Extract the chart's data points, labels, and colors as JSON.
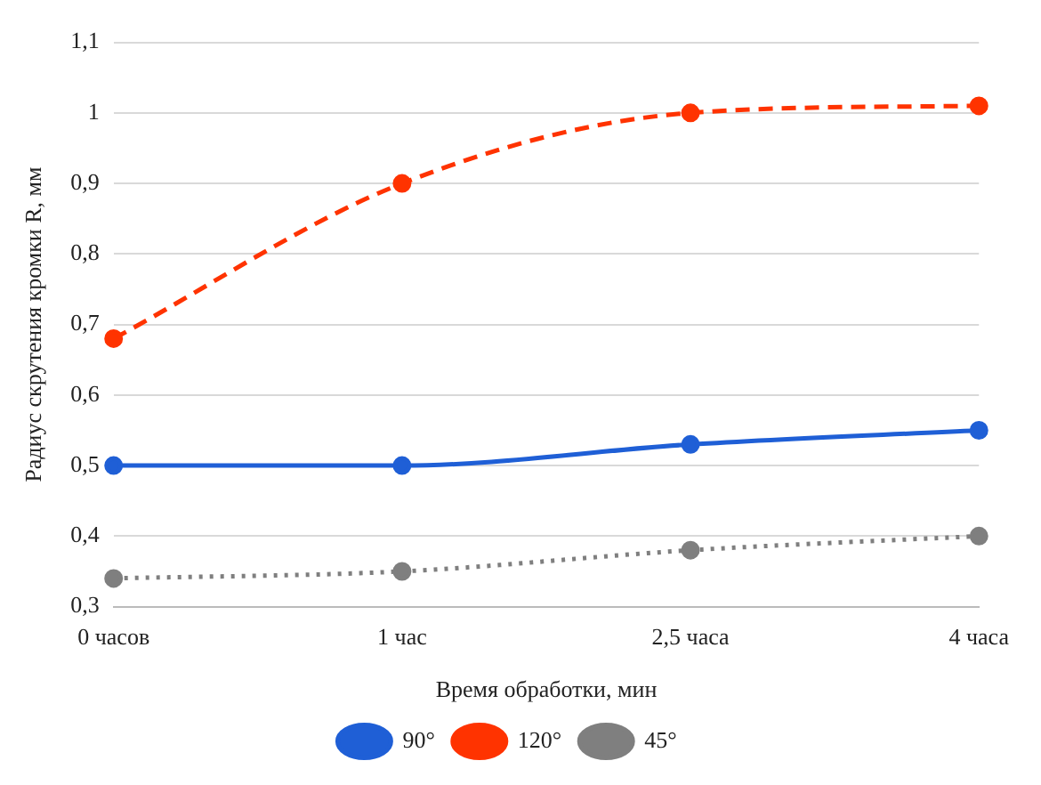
{
  "chart_data": {
    "type": "line",
    "xlabel": "Время обработки, мин",
    "ylabel": "Радиус скрутения кромки R, мм",
    "categories": [
      "0 часов",
      "1 час",
      "2,5 часа",
      "4 часа"
    ],
    "series": [
      {
        "name": "90°",
        "color": "#1f5fd6",
        "values": [
          0.5,
          0.5,
          0.53,
          0.55
        ],
        "line_style": "solid"
      },
      {
        "name": "120°",
        "color": "#ff3300",
        "values": [
          0.68,
          0.9,
          1.0,
          1.01
        ],
        "line_style": "dashed"
      },
      {
        "name": "45°",
        "color": "#7f7f7f",
        "values": [
          0.34,
          0.35,
          0.38,
          0.4
        ],
        "line_style": "dotted"
      }
    ],
    "ylim": [
      0.3,
      1.1
    ],
    "yticks": [
      {
        "value": 0.3,
        "label": "0,3"
      },
      {
        "value": 0.4,
        "label": "0,4"
      },
      {
        "value": 0.5,
        "label": "0,5"
      },
      {
        "value": 0.6,
        "label": "0,6"
      },
      {
        "value": 0.7,
        "label": "0,7"
      },
      {
        "value": 0.8,
        "label": "0,8"
      },
      {
        "value": 0.9,
        "label": "0,9"
      },
      {
        "value": 1,
        "label": "1"
      },
      {
        "value": 1.1,
        "label": "1,1"
      }
    ],
    "grid": "y",
    "legend": "bottom",
    "marker": "circle"
  }
}
